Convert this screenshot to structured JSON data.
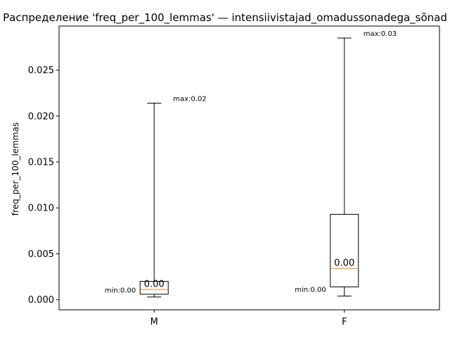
{
  "chart_data": {
    "type": "box",
    "title": "Распределение 'freq_per_100_lemmas' — intensiivistajad_omadussonadega_sõnad",
    "xlabel": "",
    "ylabel": "freq_per_100_lemmas",
    "ylim": [
      -0.0011,
      0.0298
    ],
    "yticks": [
      "0.000",
      "0.005",
      "0.010",
      "0.015",
      "0.020",
      "0.025"
    ],
    "yticks_values": [
      0.0,
      0.005,
      0.01,
      0.015,
      0.02,
      0.025
    ],
    "categories": [
      "M",
      "F"
    ],
    "boxes": [
      {
        "category": "M",
        "whisker_low": 0.0003,
        "q1": 0.0006,
        "median": 0.0011,
        "q3": 0.002,
        "whisker_high": 0.0214,
        "median_label": "0.00",
        "min_label": "min:0.00",
        "max_label": "max:0.02"
      },
      {
        "category": "F",
        "whisker_low": 0.0004,
        "q1": 0.0014,
        "median": 0.0034,
        "q3": 0.0093,
        "whisker_high": 0.0285,
        "median_label": "0.00",
        "min_label": "min:0.00",
        "max_label": "max:0.03"
      }
    ],
    "colors": {
      "box": "#000000",
      "median": "#ff7f0e",
      "frame": "#000000"
    },
    "grid": false,
    "legend": "none"
  }
}
